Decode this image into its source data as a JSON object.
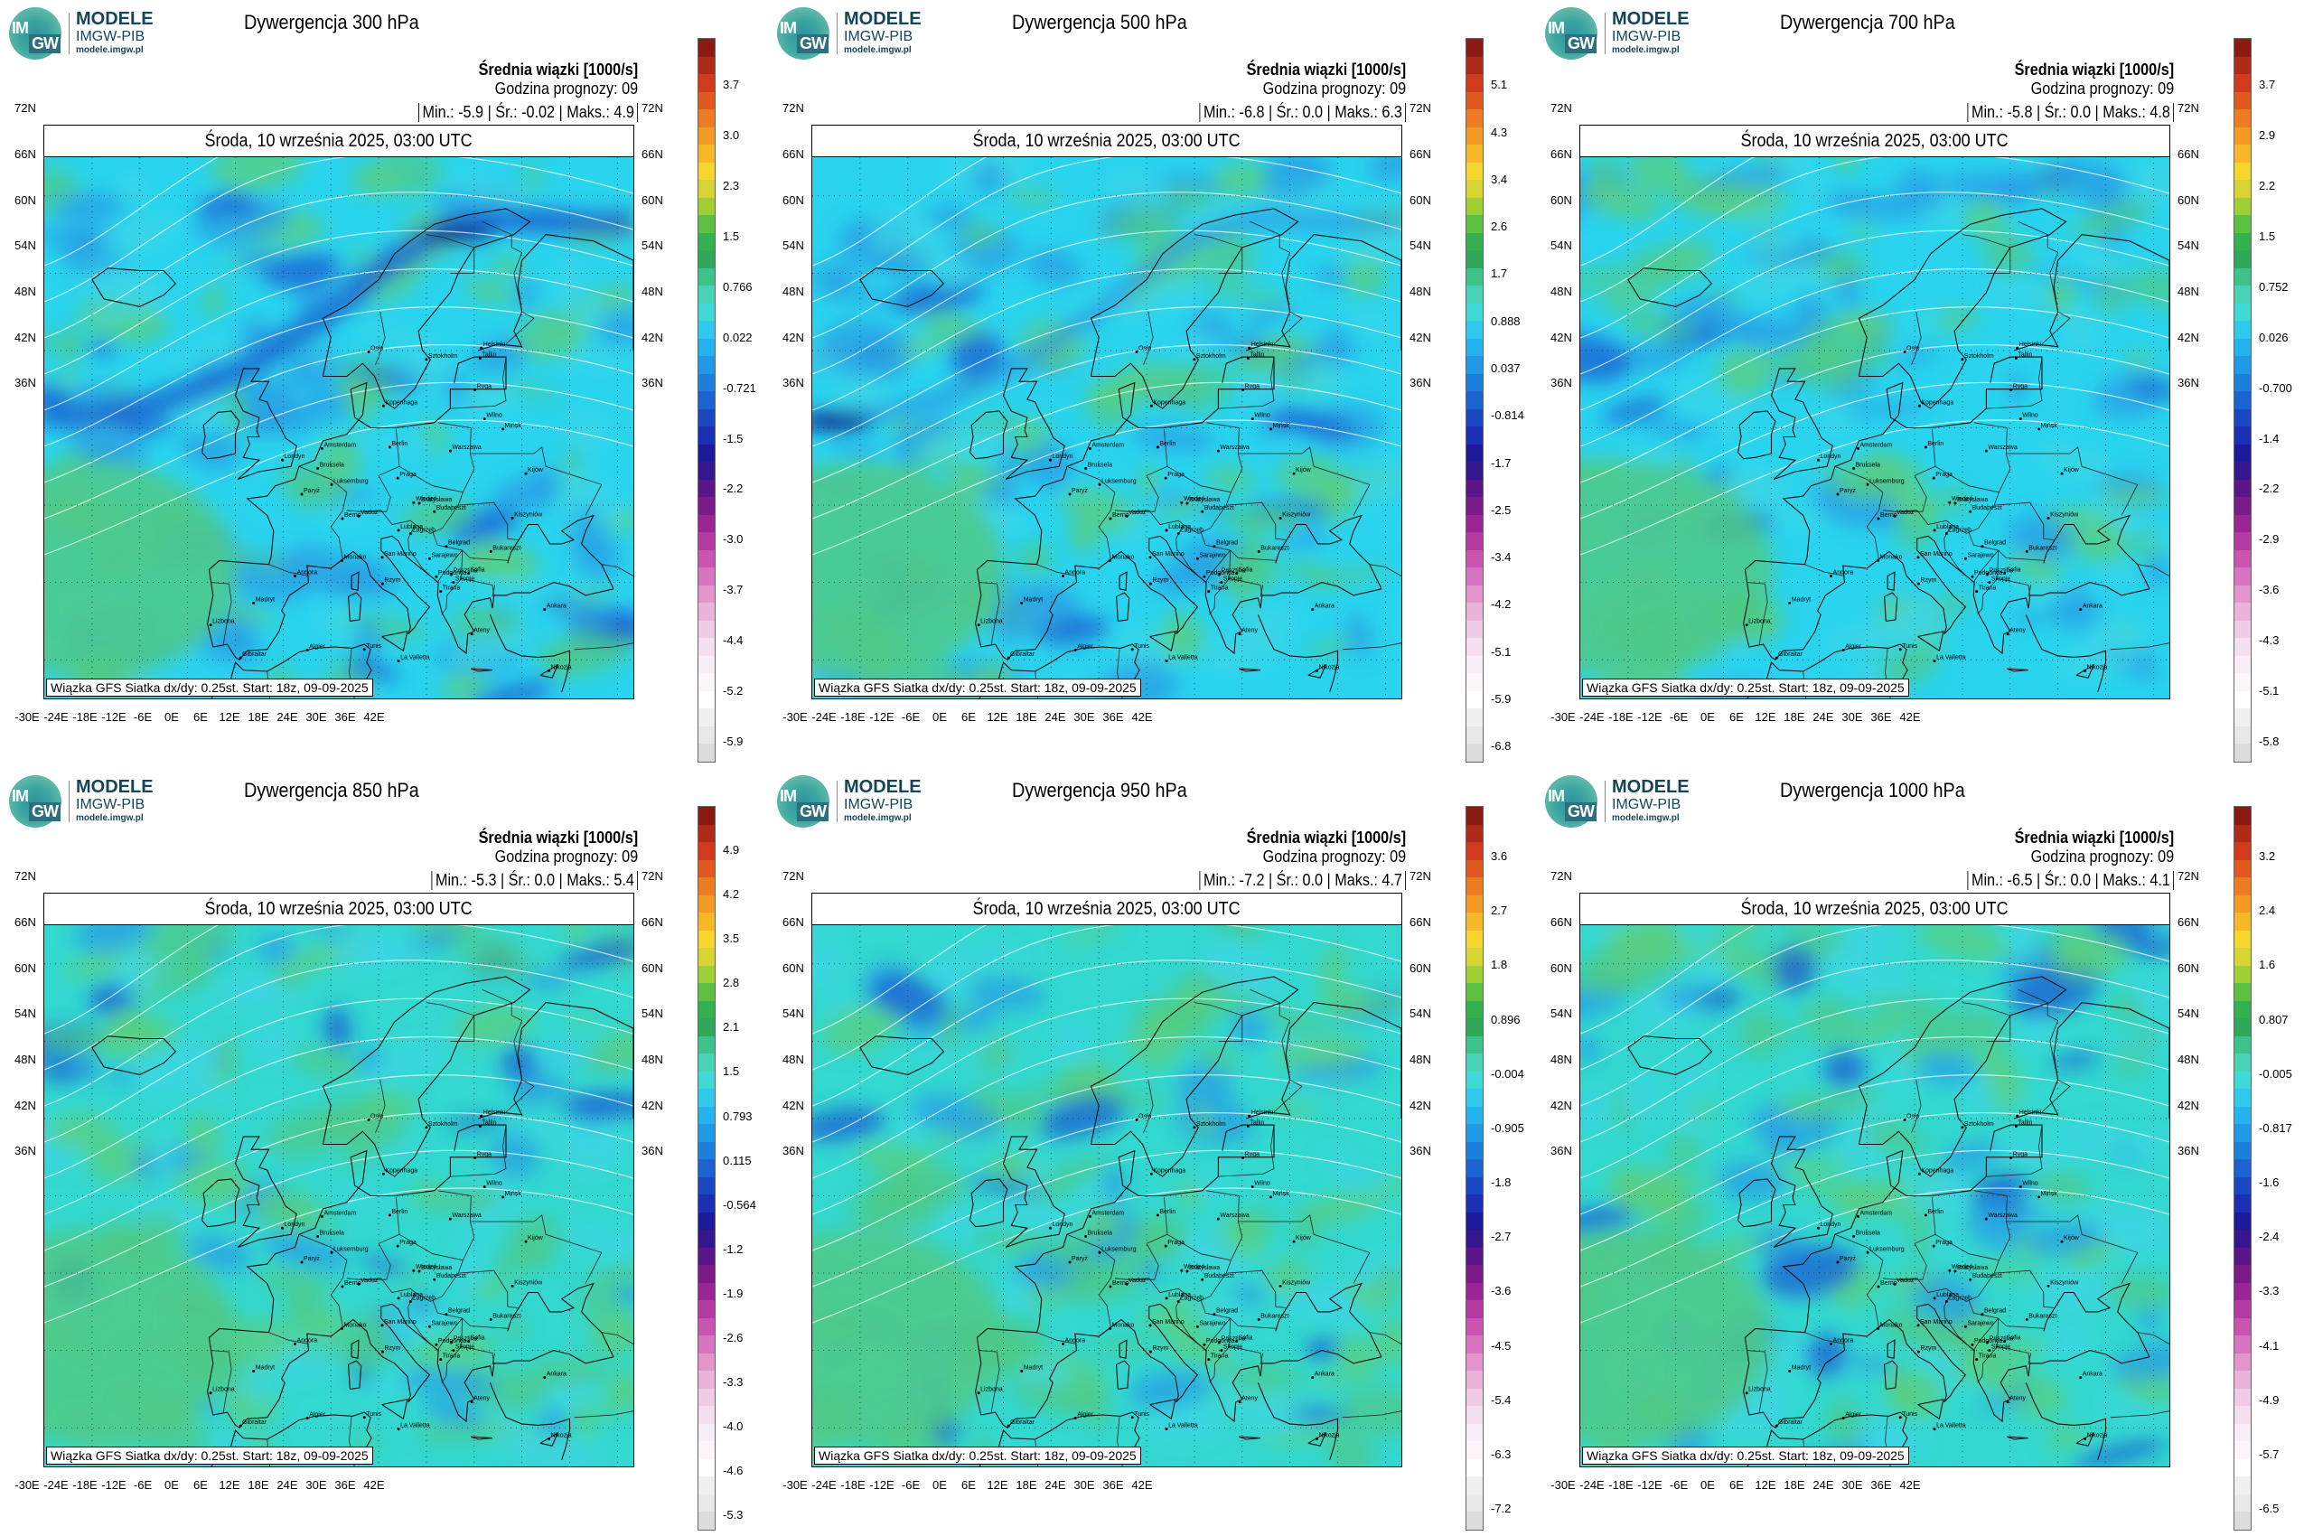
{
  "logo": {
    "im": "IM",
    "gw": "GW",
    "line1": "MODELE",
    "line2": "IMGW-PIB",
    "line3": "modele.imgw.pl"
  },
  "common": {
    "mean_label": "Średnia wiązki [1000/s]",
    "forecast_hour": "Godzina prognozy: 09",
    "date": "Środa, 10 września 2025, 03:00 UTC",
    "footnote": "Wiązka GFS Siatka dx/dy: 0.25st. Start: 18z, 09-09-2025",
    "lat_labels": [
      "72N",
      "66N",
      "60N",
      "54N",
      "48N",
      "42N",
      "36N"
    ],
    "lon_labels": [
      "-30E",
      "-24E",
      "-18E",
      "-12E",
      "-6E",
      "0E",
      "6E",
      "12E",
      "18E",
      "24E",
      "30E",
      "36E",
      "42E"
    ]
  },
  "colors": {
    "ocean_base": "#26d6ef",
    "green": "#4cc98a",
    "blue": "#1a78d8",
    "navy": "#102a9a",
    "border": "#1a1a1a"
  },
  "panels": [
    {
      "title": "Dywergencja 300 hPa",
      "stats": "Min.:   -5.9 | Śr.:   -0.02 | Maks.:    4.9",
      "colorbar": [
        "3.7",
        "3.0",
        "2.3",
        "1.5",
        "0.766",
        "0.022",
        "-0.721",
        "-1.5",
        "-2.2",
        "-3.0",
        "-3.7",
        "-4.4",
        "-5.2",
        "-5.9"
      ]
    },
    {
      "title": "Dywergencja 500 hPa",
      "stats": "Min.:   -6.8 | Śr.:    0.0 | Maks.:    6.3",
      "colorbar": [
        "5.1",
        "4.3",
        "3.4",
        "2.6",
        "1.7",
        "0.888",
        "0.037",
        "-0.814",
        "-1.7",
        "-2.5",
        "-3.4",
        "-4.2",
        "-5.1",
        "-5.9",
        "-6.8"
      ]
    },
    {
      "title": "Dywergencja 700 hPa",
      "stats": "Min.:   -5.8 | Śr.:    0.0 | Maks.:    4.8",
      "colorbar": [
        "3.7",
        "2.9",
        "2.2",
        "1.5",
        "0.752",
        "0.026",
        "-0.700",
        "-1.4",
        "-2.2",
        "-2.9",
        "-3.6",
        "-4.3",
        "-5.1",
        "-5.8"
      ]
    },
    {
      "title": "Dywergencja 850 hPa",
      "stats": "Min.:   -5.3 | Śr.:    0.0 | Maks.:    5.4",
      "colorbar": [
        "4.9",
        "4.2",
        "3.5",
        "2.8",
        "2.1",
        "1.5",
        "0.793",
        "0.115",
        "-0.564",
        "-1.2",
        "-1.9",
        "-2.6",
        "-3.3",
        "-4.0",
        "-4.6",
        "-5.3"
      ]
    },
    {
      "title": "Dywergencja 950 hPa",
      "stats": "Min.:   -7.2 | Śr.:    0.0 | Maks.:    4.7",
      "colorbar": [
        "3.6",
        "2.7",
        "1.8",
        "0.896",
        "-0.004",
        "-0.905",
        "-1.8",
        "-2.7",
        "-3.6",
        "-4.5",
        "-5.4",
        "-6.3",
        "-7.2"
      ]
    },
    {
      "title": "Dywergencja 1000 hPa",
      "stats": "Min.:   -6.5 | Śr.:    0.0 | Maks.:    4.1",
      "colorbar": [
        "3.2",
        "2.4",
        "1.6",
        "0.807",
        "-0.005",
        "-0.817",
        "-1.6",
        "-2.4",
        "-3.3",
        "-4.1",
        "-4.9",
        "-5.7",
        "-6.5"
      ]
    }
  ]
}
